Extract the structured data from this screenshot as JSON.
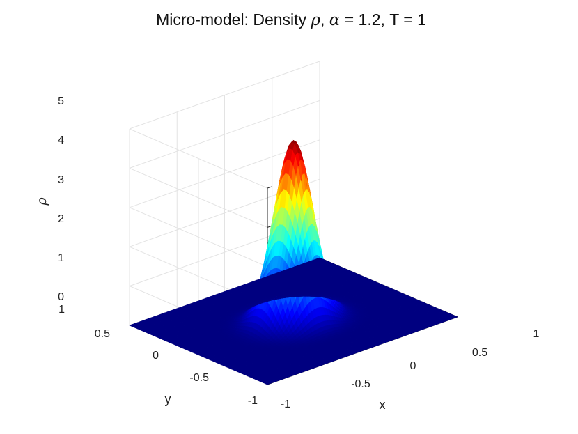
{
  "chart_data": {
    "type": "surface",
    "title": {
      "prefix": "Micro-model: Density ",
      "rho": "ρ",
      "sep": ", ",
      "alpha": "α",
      "suffix": " = 1.2, T = 1"
    },
    "xlabel": "x",
    "ylabel": "y",
    "zlabel": "ρ",
    "xlim": [
      -1,
      1
    ],
    "ylim": [
      -1,
      1
    ],
    "zlim": [
      0,
      5
    ],
    "x_ticks": [
      -1,
      -0.5,
      0,
      0.5,
      1
    ],
    "x_tick_labels": [
      "-1",
      "-0.5",
      "0",
      "0.5",
      "1"
    ],
    "y_ticks": [
      -1,
      -0.5,
      0,
      0.5,
      1
    ],
    "y_tick_labels": [
      "-1",
      "-0.5",
      "0",
      "0.5",
      "1"
    ],
    "z_ticks": [
      0,
      1,
      2,
      3,
      4,
      5
    ],
    "z_tick_labels": [
      "0",
      "1",
      "2",
      "3",
      "4",
      "5"
    ],
    "grid": true,
    "colormap": "jet",
    "surface": {
      "shape": "gaussian",
      "center": [
        0,
        0
      ],
      "peak": 4.6,
      "sigma": 0.17
    }
  }
}
